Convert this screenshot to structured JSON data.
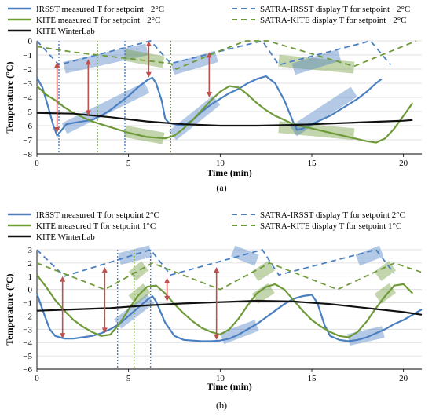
{
  "chart_data": [
    {
      "type": "line",
      "panel_label": "(a)",
      "xlabel": "Time (min)",
      "ylabel": "Temperature (°C)",
      "xlim": [
        0,
        21
      ],
      "ylim": [
        -8,
        0
      ],
      "xticks": [
        0,
        5,
        10,
        15,
        20
      ],
      "yticks": [
        -8,
        -7,
        -6,
        -5,
        -4,
        -3,
        -2,
        -1,
        0
      ],
      "grid": "horizontal",
      "legend_position": "top",
      "series": [
        {
          "name": "IRSST measured T for setpoint −2°C",
          "color": "#4a7fc1",
          "style": "solid",
          "x": [
            0,
            0.3,
            0.6,
            0.9,
            1.1,
            1.3,
            1.6,
            2.0,
            2.5,
            3.0,
            3.5,
            4.0,
            4.5,
            5.0,
            5.5,
            6.0,
            6.3,
            6.5,
            6.8,
            7.0,
            7.2,
            7.5,
            8.0,
            8.5,
            9.0,
            9.5,
            10.0,
            10.5,
            11.0,
            11.5,
            12.0,
            12.5,
            13.0,
            13.5,
            14.0,
            14.2,
            14.5,
            15.0,
            15.5,
            16.0,
            16.5,
            17.0,
            17.5,
            18.0,
            18.5,
            18.8
          ],
          "y": [
            -2.6,
            -3.3,
            -4.6,
            -6.0,
            -6.7,
            -6.4,
            -5.9,
            -5.8,
            -5.7,
            -5.6,
            -5.3,
            -4.9,
            -4.4,
            -3.9,
            -3.3,
            -2.8,
            -2.6,
            -3.0,
            -4.2,
            -5.5,
            -5.8,
            -5.9,
            -6.0,
            -5.6,
            -5.0,
            -4.5,
            -4.1,
            -3.7,
            -3.4,
            -3.0,
            -2.7,
            -2.5,
            -3.0,
            -4.2,
            -5.8,
            -6.3,
            -6.2,
            -5.9,
            -5.6,
            -5.3,
            -4.9,
            -4.5,
            -4.1,
            -3.6,
            -3.0,
            -2.7
          ]
        },
        {
          "name": "KITE measured T for setpoint −2°C",
          "color": "#6f9a3a",
          "style": "solid",
          "x": [
            0,
            0.5,
            1.0,
            1.5,
            2.0,
            2.5,
            3.0,
            4.0,
            5.0,
            6.0,
            7.0,
            7.5,
            8.0,
            8.5,
            9.0,
            9.5,
            10.0,
            10.5,
            11.0,
            11.5,
            12.0,
            12.5,
            13.0,
            13.5,
            14.0,
            15.0,
            16.0,
            17.0,
            18.0,
            18.5,
            19.0,
            19.5,
            20.0,
            20.5
          ],
          "y": [
            -3.2,
            -3.8,
            -4.2,
            -4.7,
            -5.1,
            -5.4,
            -5.7,
            -6.1,
            -6.5,
            -6.8,
            -6.9,
            -6.7,
            -6.2,
            -5.6,
            -4.9,
            -4.2,
            -3.6,
            -3.2,
            -3.3,
            -3.8,
            -4.4,
            -4.9,
            -5.3,
            -5.6,
            -5.9,
            -6.2,
            -6.5,
            -6.8,
            -7.1,
            -7.2,
            -6.9,
            -6.2,
            -5.3,
            -4.4
          ]
        },
        {
          "name": "KITE WinterLab",
          "color": "#111111",
          "style": "solid",
          "x": [
            0,
            2,
            4,
            6,
            8,
            10,
            12,
            14,
            16,
            18,
            20,
            20.5
          ],
          "y": [
            -5.1,
            -5.15,
            -5.4,
            -5.7,
            -5.9,
            -6.0,
            -6.0,
            -5.95,
            -5.85,
            -5.75,
            -5.65,
            -5.6
          ]
        },
        {
          "name": "SATRA-IRSST display T for setpoint −2°C",
          "color": "#4a7fc1",
          "style": "dashed",
          "x": [
            0,
            1.2,
            6.2,
            7.3,
            12.3,
            13.2,
            18.2,
            19.3
          ],
          "y": [
            0,
            -1.7,
            0,
            -1.6,
            0,
            -1.7,
            0,
            -1.7
          ]
        },
        {
          "name": "SATRA-KITE display T for setpoint −2°C",
          "color": "#6f9a3a",
          "style": "dashed",
          "x": [
            0,
            2.0,
            7.3,
            7.6,
            9.8,
            11.4,
            12.6,
            17.3,
            20.7
          ],
          "y": [
            -0.4,
            -0.8,
            -1.6,
            -2.0,
            -0.8,
            0,
            0,
            -1.8,
            0
          ]
        }
      ],
      "annotations": {
        "vlines": [
          {
            "x": 1.2,
            "color": "#4a7fc1"
          },
          {
            "x": 3.3,
            "color": "#6f9a3a"
          },
          {
            "x": 4.8,
            "color": "#4a7fc1"
          },
          {
            "x": 7.3,
            "color": "#6f9a3a"
          }
        ],
        "arrows": [
          {
            "x": 1.1,
            "y1": -1.5,
            "y2": -6.5
          },
          {
            "x": 2.8,
            "y1": -1.3,
            "y2": -5.3
          },
          {
            "x": 6.1,
            "y1": 0,
            "y2": -2.6
          },
          {
            "x": 9.4,
            "y1": -0.8,
            "y2": -4.0
          }
        ],
        "bands": [
          {
            "x1": 1.5,
            "y1": -1.9,
            "x2": 6.0,
            "y2": -0.6,
            "color": "#4a7fc1"
          },
          {
            "x1": 4.8,
            "y1": -1.0,
            "x2": 6.9,
            "y2": -1.5,
            "color": "#6f9a3a"
          },
          {
            "x1": 7.4,
            "y1": -2.0,
            "x2": 9.8,
            "y2": -1.1,
            "color": "#4a7fc1"
          },
          {
            "x1": 13.2,
            "y1": -1.4,
            "x2": 17.3,
            "y2": -1.9,
            "color": "#6f9a3a"
          },
          {
            "x1": 14.0,
            "y1": -2.0,
            "x2": 16.5,
            "y2": -1.0,
            "color": "#4a7fc1"
          },
          {
            "x1": 1.5,
            "y1": -6.2,
            "x2": 6.0,
            "y2": -3.3,
            "color": "#4a7fc1"
          },
          {
            "x1": 4.8,
            "y1": -6.4,
            "x2": 6.9,
            "y2": -6.9,
            "color": "#6f9a3a"
          },
          {
            "x1": 7.4,
            "y1": -6.7,
            "x2": 9.8,
            "y2": -4.2,
            "color": "#4a7fc1"
          },
          {
            "x1": 13.2,
            "y1": -6.1,
            "x2": 17.3,
            "y2": -6.6,
            "color": "#6f9a3a"
          },
          {
            "x1": 14.0,
            "y1": -6.4,
            "x2": 17.3,
            "y2": -3.6,
            "color": "#4a7fc1"
          }
        ]
      }
    },
    {
      "type": "line",
      "panel_label": "(b)",
      "xlabel": "Time (min)",
      "ylabel": "Temperature (°C)",
      "xlim": [
        0,
        21
      ],
      "ylim": [
        -6,
        3
      ],
      "xticks": [
        0,
        5,
        10,
        15,
        20
      ],
      "yticks": [
        -6,
        -5,
        -4,
        -3,
        -2,
        -1,
        0,
        1,
        2,
        3
      ],
      "grid": "horizontal",
      "legend_position": "top",
      "series": [
        {
          "name": "IRSST measured T for setpoint 2°C",
          "color": "#4a7fc1",
          "style": "solid",
          "x": [
            0,
            0.3,
            0.7,
            1.0,
            1.5,
            2.0,
            2.5,
            3.0,
            3.5,
            4.0,
            4.5,
            5.0,
            5.5,
            6.0,
            6.3,
            6.5,
            7.0,
            7.5,
            8.0,
            8.5,
            9.0,
            9.5,
            10.0,
            10.5,
            11.0,
            11.5,
            12.0,
            12.5,
            13.0,
            13.5,
            14.0,
            14.5,
            15.0,
            15.3,
            15.7,
            16.0,
            16.5,
            17.0,
            17.5,
            18.0,
            18.5,
            19.0,
            19.5,
            20.0,
            20.5,
            21.0
          ],
          "y": [
            -0.3,
            -1.5,
            -3.0,
            -3.5,
            -3.7,
            -3.7,
            -3.6,
            -3.5,
            -3.3,
            -3.0,
            -2.6,
            -2.0,
            -1.4,
            -0.8,
            -0.5,
            -0.9,
            -2.5,
            -3.5,
            -3.8,
            -3.85,
            -3.9,
            -3.9,
            -3.85,
            -3.7,
            -3.4,
            -3.0,
            -2.6,
            -2.1,
            -1.6,
            -1.1,
            -0.7,
            -0.5,
            -0.4,
            -1.0,
            -2.7,
            -3.5,
            -3.8,
            -3.9,
            -3.8,
            -3.6,
            -3.3,
            -3.0,
            -2.6,
            -2.3,
            -1.9,
            -1.5
          ]
        },
        {
          "name": "KITE measured T for setpoint 1°C",
          "color": "#6f9a3a",
          "style": "solid",
          "x": [
            0,
            0.5,
            1.0,
            1.5,
            2.0,
            2.5,
            3.0,
            3.5,
            4.0,
            4.5,
            5.0,
            5.5,
            6.0,
            6.5,
            7.0,
            7.5,
            8.0,
            8.5,
            9.0,
            9.5,
            10.0,
            10.5,
            11.0,
            11.5,
            12.0,
            12.5,
            13.0,
            13.5,
            14.0,
            14.5,
            15.0,
            15.5,
            16.0,
            16.5,
            17.0,
            17.5,
            18.0,
            18.5,
            19.0,
            19.5,
            20.0,
            20.5
          ],
          "y": [
            1.1,
            0.2,
            -0.8,
            -1.6,
            -2.3,
            -2.8,
            -3.2,
            -3.5,
            -3.4,
            -2.6,
            -1.5,
            -0.5,
            0.2,
            0.3,
            -0.3,
            -1.1,
            -1.8,
            -2.4,
            -2.9,
            -3.2,
            -3.4,
            -3.0,
            -2.2,
            -1.2,
            -0.3,
            0.2,
            0.4,
            0.0,
            -0.8,
            -1.6,
            -2.3,
            -2.8,
            -3.2,
            -3.5,
            -3.6,
            -3.2,
            -2.4,
            -1.4,
            -0.5,
            0.3,
            0.4,
            -0.3
          ]
        },
        {
          "name": "KITE WinterLab",
          "color": "#111111",
          "style": "solid",
          "x": [
            0,
            2,
            4,
            6,
            8,
            10,
            12,
            14,
            16,
            18,
            20,
            21
          ],
          "y": [
            -1.6,
            -1.5,
            -1.4,
            -1.2,
            -1.05,
            -0.95,
            -0.85,
            -0.9,
            -1.1,
            -1.4,
            -1.7,
            -1.9
          ]
        },
        {
          "name": "SATRA-IRSST display T for setpoint 2°C",
          "color": "#4a7fc1",
          "style": "dashed",
          "x": [
            0,
            1.5,
            6.2,
            7.3,
            12.3,
            13.2,
            18.5,
            19.5
          ],
          "y": [
            3.0,
            1.0,
            3.0,
            1.1,
            3.0,
            1.1,
            3.0,
            1.2
          ]
        },
        {
          "name": "SATRA-KITE display T for setpoint 1°C",
          "color": "#6f9a3a",
          "style": "dashed",
          "x": [
            0,
            3.7,
            6.3,
            10.0,
            12.7,
            16.4,
            19.5,
            21
          ],
          "y": [
            2.0,
            0.0,
            2.0,
            0.0,
            2.0,
            0.0,
            2.0,
            1.3
          ]
        }
      ],
      "annotations": {
        "vlines": [
          {
            "x": 4.4,
            "color": "#4a7fc1"
          },
          {
            "x": 5.3,
            "color": "#6f9a3a"
          },
          {
            "x": 6.2,
            "color": "#4a7fc1"
          }
        ],
        "arrows": [
          {
            "x": 1.4,
            "y1": 1.0,
            "y2": -3.7
          },
          {
            "x": 3.7,
            "y1": 1.7,
            "y2": -3.3
          },
          {
            "x": 7.1,
            "y1": 0.9,
            "y2": -0.9
          },
          {
            "x": 9.8,
            "y1": 1.7,
            "y2": -3.8
          }
        ],
        "bands": [
          {
            "x1": 4.5,
            "y1": 2.3,
            "x2": 6.2,
            "y2": 2.9,
            "color": "#4a7fc1"
          },
          {
            "x1": 5.2,
            "y1": 1.0,
            "x2": 5.9,
            "y2": 1.8,
            "color": "#6f9a3a"
          },
          {
            "x1": 10.7,
            "y1": 2.9,
            "x2": 12.0,
            "y2": 2.2,
            "color": "#4a7fc1"
          },
          {
            "x1": 11.9,
            "y1": 1.0,
            "x2": 12.8,
            "y2": 1.8,
            "color": "#6f9a3a"
          },
          {
            "x1": 17.5,
            "y1": 2.2,
            "x2": 18.8,
            "y2": 2.9,
            "color": "#4a7fc1"
          },
          {
            "x1": 18.6,
            "y1": 1.0,
            "x2": 19.4,
            "y2": 1.8,
            "color": "#6f9a3a"
          },
          {
            "x1": 4.4,
            "y1": -2.6,
            "x2": 6.2,
            "y2": -0.7,
            "color": "#4a7fc1"
          },
          {
            "x1": 5.2,
            "y1": -0.8,
            "x2": 6.0,
            "y2": 0.1,
            "color": "#6f9a3a"
          },
          {
            "x1": 10.1,
            "y1": -3.7,
            "x2": 12.0,
            "y2": -2.7,
            "color": "#4a7fc1"
          },
          {
            "x1": 11.9,
            "y1": -0.7,
            "x2": 12.8,
            "y2": 0.1,
            "color": "#6f9a3a"
          },
          {
            "x1": 17.0,
            "y1": -3.8,
            "x2": 18.9,
            "y2": -3.2,
            "color": "#4a7fc1"
          },
          {
            "x1": 18.6,
            "y1": -0.7,
            "x2": 19.4,
            "y2": 0.1,
            "color": "#6f9a3a"
          }
        ]
      }
    }
  ]
}
